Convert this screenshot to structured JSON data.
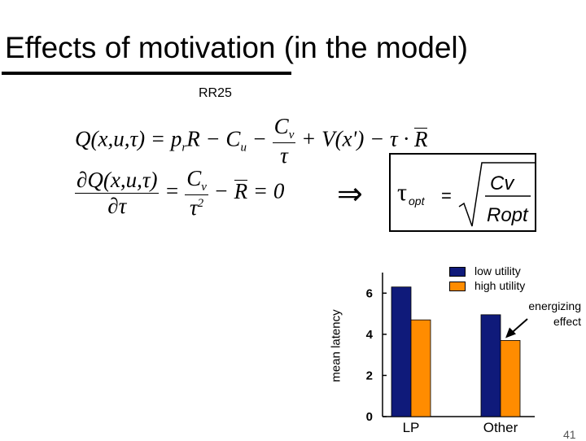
{
  "slide": {
    "title": "Effects of motivation (in the model)",
    "citation": "RR25",
    "page_number": "41"
  },
  "equations": {
    "q_lhs": "Q(x,u,τ) = p",
    "q_sub_r": "r",
    "q_R": "R − C",
    "q_sub_u": "u",
    "q_minus": " − ",
    "cv_C": "C",
    "cv_sub": "v",
    "tau": "τ",
    "q_tail": " + V(x') − τ · ",
    "rbar": "R",
    "d_num": "∂Q(x,u,τ)",
    "d_den": "∂τ",
    "eq_sign": " = ",
    "tau_sq": "2",
    "d_tail": " − ",
    "d_end": " = 0",
    "implies": "⇒",
    "opt_tau": "τ",
    "opt_sub": "opt",
    "opt_eq": "=",
    "opt_num": "Cv",
    "opt_den": "Ropt"
  },
  "chart_data": {
    "type": "bar",
    "categories": [
      "LP",
      "Other"
    ],
    "series": [
      {
        "name": "low utility",
        "color": "#0f1a7a",
        "values": [
          6.3,
          4.95
        ]
      },
      {
        "name": "high utility",
        "color": "#ff8c00",
        "values": [
          4.7,
          3.7
        ]
      }
    ],
    "ylabel": "mean latency",
    "ylim": [
      0,
      7
    ],
    "yticks": [
      0,
      2,
      4,
      6
    ],
    "legend": "top-right",
    "annotation": {
      "lines": [
        "energizing",
        "effect"
      ],
      "target": "Other / high utility"
    }
  }
}
